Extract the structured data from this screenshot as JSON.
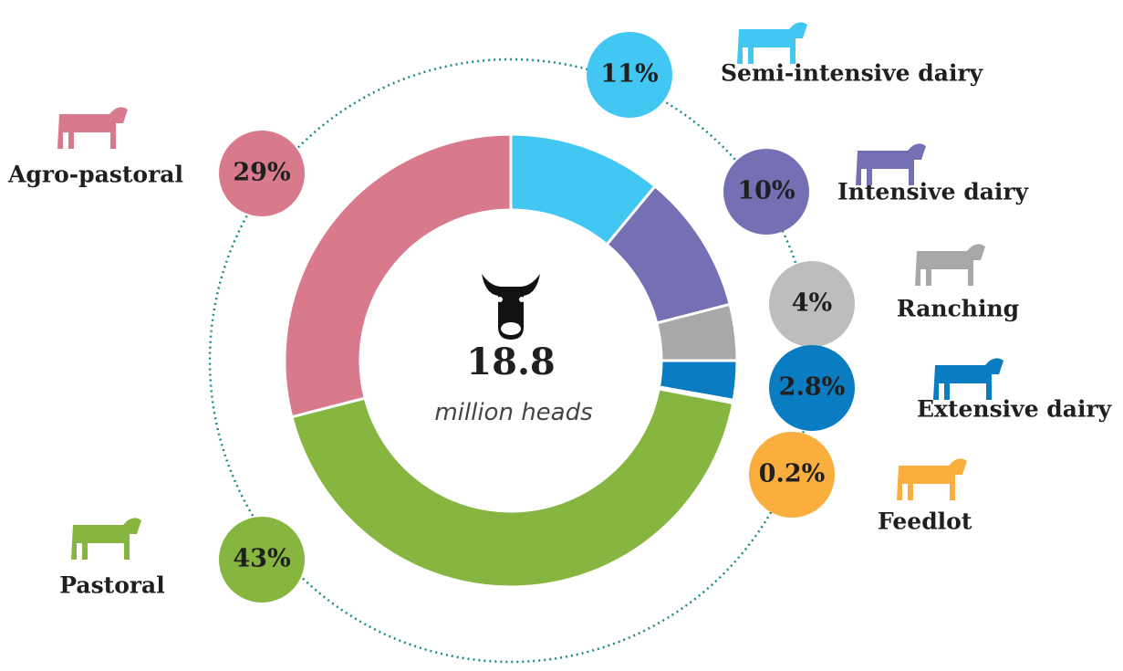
{
  "chart_data": {
    "type": "donut",
    "categories": [
      "Semi-intensive dairy",
      "Intensive dairy",
      "Ranching",
      "Extensive dairy",
      "Feedlot",
      "Pastoral",
      "Agro-pastoral"
    ],
    "values": [
      11,
      10,
      4,
      2.8,
      0.2,
      43,
      29
    ],
    "value_labels": [
      "11%",
      "10%",
      "4%",
      "2.8%",
      "0.2%",
      "43%",
      "29%"
    ],
    "colors": [
      "#42c6f2",
      "#7570b3",
      "#a8a8aa",
      "#0a7cc1",
      "#f9ae3e",
      "#86b540",
      "#d97a8c"
    ],
    "total": 18.8,
    "total_label": "million heads"
  }
}
